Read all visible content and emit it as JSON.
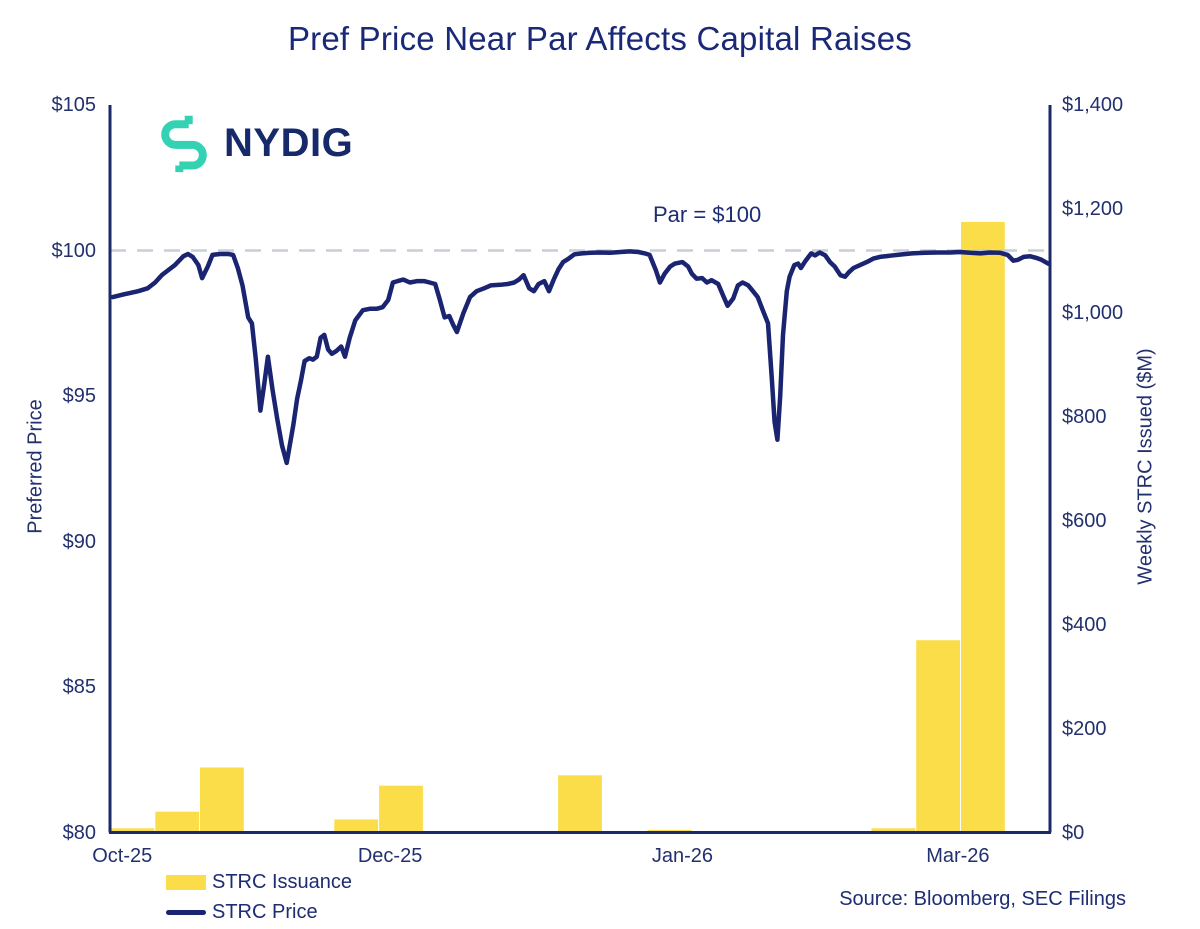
{
  "title": "Pref Price Near Par Affects Capital Raises",
  "logo": {
    "text": "NYDIG"
  },
  "annotations": {
    "par_label": "Par = $100"
  },
  "source": "Source: Bloomberg, SEC Filings",
  "legend": [
    {
      "label": "STRC Issuance",
      "type": "bar"
    },
    {
      "label": "STRC Price",
      "type": "line"
    }
  ],
  "colors": {
    "navy_line": "#1a2470",
    "navy_text": "#1e2c74",
    "axis": "#1a2a66",
    "yellow": "#fbdd4a",
    "teal": "#35d1b3",
    "dash_gray": "#c9cdd8"
  },
  "left_axis": {
    "title": "Preferred Price",
    "min": 80,
    "max": 105,
    "ticks": [
      {
        "label": "$105",
        "value": 105
      },
      {
        "label": "$100",
        "value": 100
      },
      {
        "label": "$95",
        "value": 95
      },
      {
        "label": "$90",
        "value": 90
      },
      {
        "label": "$85",
        "value": 85
      },
      {
        "label": "$80",
        "value": 80
      }
    ]
  },
  "right_axis": {
    "title": "Weekly STRC Issued ($M)",
    "min": 0,
    "max": 1400,
    "ticks": [
      {
        "label": "$1,400",
        "value": 1400
      },
      {
        "label": "$1,200",
        "value": 1200
      },
      {
        "label": "$1,000",
        "value": 1000
      },
      {
        "label": "$800",
        "value": 800
      },
      {
        "label": "$600",
        "value": 600
      },
      {
        "label": "$400",
        "value": 400
      },
      {
        "label": "$200",
        "value": 200
      },
      {
        "label": "$0",
        "value": 0
      }
    ]
  },
  "x_axis": {
    "labels": [
      {
        "text": "Oct-25",
        "f": 0.013
      },
      {
        "text": "Dec-25",
        "f": 0.298
      },
      {
        "text": "Jan-26",
        "f": 0.609
      },
      {
        "text": "Mar-26",
        "f": 0.902
      }
    ]
  },
  "chart_data": {
    "type": "line+bar",
    "title": "Pref Price Near Par Affects Capital Raises",
    "par_line_price": 100,
    "grid": false,
    "legend_position": "bottom-left",
    "bars": {
      "name": "STRC Issuance",
      "unit": "$M",
      "axis": "right",
      "weekly_slots": 21,
      "values": [
        8,
        40,
        125,
        0,
        0,
        25,
        90,
        0,
        0,
        0,
        110,
        0,
        5,
        0,
        0,
        0,
        0,
        8,
        370,
        1175,
        0
      ]
    },
    "line": {
      "name": "STRC Price",
      "unit": "$",
      "axis": "left",
      "points": [
        [
          0.003,
          98.4
        ],
        [
          0.016,
          98.5
        ],
        [
          0.03,
          98.6
        ],
        [
          0.04,
          98.7
        ],
        [
          0.048,
          98.9
        ],
        [
          0.055,
          99.15
        ],
        [
          0.061,
          99.3
        ],
        [
          0.069,
          99.5
        ],
        [
          0.078,
          99.8
        ],
        [
          0.083,
          99.88
        ],
        [
          0.088,
          99.78
        ],
        [
          0.094,
          99.5
        ],
        [
          0.098,
          99.05
        ],
        [
          0.104,
          99.45
        ],
        [
          0.109,
          99.85
        ],
        [
          0.117,
          99.88
        ],
        [
          0.126,
          99.88
        ],
        [
          0.131,
          99.85
        ],
        [
          0.136,
          99.4
        ],
        [
          0.141,
          98.8
        ],
        [
          0.147,
          97.7
        ],
        [
          0.151,
          97.5
        ],
        [
          0.155,
          96.3
        ],
        [
          0.16,
          94.5
        ],
        [
          0.164,
          95.4
        ],
        [
          0.168,
          96.35
        ],
        [
          0.173,
          95.2
        ],
        [
          0.178,
          94.2
        ],
        [
          0.183,
          93.3
        ],
        [
          0.188,
          92.7
        ],
        [
          0.195,
          94.0
        ],
        [
          0.199,
          94.9
        ],
        [
          0.203,
          95.5
        ],
        [
          0.207,
          96.2
        ],
        [
          0.212,
          96.3
        ],
        [
          0.216,
          96.25
        ],
        [
          0.22,
          96.35
        ],
        [
          0.224,
          97.0
        ],
        [
          0.228,
          97.1
        ],
        [
          0.232,
          96.6
        ],
        [
          0.236,
          96.45
        ],
        [
          0.241,
          96.55
        ],
        [
          0.246,
          96.7
        ],
        [
          0.25,
          96.35
        ],
        [
          0.255,
          97.0
        ],
        [
          0.261,
          97.6
        ],
        [
          0.269,
          97.95
        ],
        [
          0.277,
          98.0
        ],
        [
          0.284,
          98.0
        ],
        [
          0.29,
          98.05
        ],
        [
          0.296,
          98.3
        ],
        [
          0.301,
          98.9
        ],
        [
          0.306,
          98.95
        ],
        [
          0.312,
          99.0
        ],
        [
          0.319,
          98.9
        ],
        [
          0.327,
          98.95
        ],
        [
          0.334,
          98.95
        ],
        [
          0.34,
          98.9
        ],
        [
          0.346,
          98.85
        ],
        [
          0.351,
          98.3
        ],
        [
          0.356,
          97.7
        ],
        [
          0.361,
          97.75
        ],
        [
          0.365,
          97.45
        ],
        [
          0.369,
          97.2
        ],
        [
          0.376,
          97.85
        ],
        [
          0.383,
          98.4
        ],
        [
          0.39,
          98.6
        ],
        [
          0.398,
          98.7
        ],
        [
          0.405,
          98.8
        ],
        [
          0.415,
          98.82
        ],
        [
          0.423,
          98.85
        ],
        [
          0.43,
          98.9
        ],
        [
          0.435,
          99.0
        ],
        [
          0.44,
          99.15
        ],
        [
          0.446,
          98.7
        ],
        [
          0.451,
          98.6
        ],
        [
          0.456,
          98.85
        ],
        [
          0.462,
          98.95
        ],
        [
          0.467,
          98.6
        ],
        [
          0.472,
          99.0
        ],
        [
          0.477,
          99.35
        ],
        [
          0.482,
          99.6
        ],
        [
          0.487,
          99.7
        ],
        [
          0.494,
          99.87
        ],
        [
          0.502,
          99.9
        ],
        [
          0.511,
          99.92
        ],
        [
          0.521,
          99.93
        ],
        [
          0.532,
          99.92
        ],
        [
          0.543,
          99.95
        ],
        [
          0.553,
          99.97
        ],
        [
          0.562,
          99.95
        ],
        [
          0.569,
          99.9
        ],
        [
          0.574,
          99.85
        ],
        [
          0.581,
          99.3
        ],
        [
          0.585,
          98.9
        ],
        [
          0.59,
          99.2
        ],
        [
          0.596,
          99.45
        ],
        [
          0.601,
          99.55
        ],
        [
          0.609,
          99.6
        ],
        [
          0.615,
          99.45
        ],
        [
          0.619,
          99.2
        ],
        [
          0.624,
          99.03
        ],
        [
          0.63,
          99.05
        ],
        [
          0.635,
          98.9
        ],
        [
          0.64,
          98.98
        ],
        [
          0.647,
          98.85
        ],
        [
          0.653,
          98.4
        ],
        [
          0.657,
          98.1
        ],
        [
          0.663,
          98.35
        ],
        [
          0.668,
          98.8
        ],
        [
          0.673,
          98.9
        ],
        [
          0.679,
          98.8
        ],
        [
          0.684,
          98.6
        ],
        [
          0.689,
          98.4
        ],
        [
          0.695,
          97.9
        ],
        [
          0.7,
          97.5
        ],
        [
          0.704,
          95.6
        ],
        [
          0.707,
          94.1
        ],
        [
          0.71,
          93.5
        ],
        [
          0.713,
          95.0
        ],
        [
          0.716,
          97.1
        ],
        [
          0.72,
          98.6
        ],
        [
          0.723,
          99.1
        ],
        [
          0.728,
          99.5
        ],
        [
          0.732,
          99.55
        ],
        [
          0.735,
          99.4
        ],
        [
          0.74,
          99.65
        ],
        [
          0.746,
          99.9
        ],
        [
          0.75,
          99.83
        ],
        [
          0.755,
          99.93
        ],
        [
          0.761,
          99.83
        ],
        [
          0.766,
          99.6
        ],
        [
          0.771,
          99.45
        ],
        [
          0.777,
          99.15
        ],
        [
          0.782,
          99.1
        ],
        [
          0.786,
          99.25
        ],
        [
          0.791,
          99.4
        ],
        [
          0.798,
          99.5
        ],
        [
          0.805,
          99.6
        ],
        [
          0.812,
          99.72
        ],
        [
          0.819,
          99.78
        ],
        [
          0.83,
          99.82
        ],
        [
          0.84,
          99.86
        ],
        [
          0.853,
          99.9
        ],
        [
          0.867,
          99.92
        ],
        [
          0.881,
          99.93
        ],
        [
          0.894,
          99.93
        ],
        [
          0.904,
          99.95
        ],
        [
          0.915,
          99.92
        ],
        [
          0.926,
          99.9
        ],
        [
          0.936,
          99.93
        ],
        [
          0.947,
          99.92
        ],
        [
          0.955,
          99.85
        ],
        [
          0.961,
          99.65
        ],
        [
          0.966,
          99.68
        ],
        [
          0.972,
          99.78
        ],
        [
          0.979,
          99.8
        ],
        [
          0.985,
          99.75
        ],
        [
          0.991,
          99.68
        ],
        [
          0.998,
          99.55
        ]
      ]
    }
  }
}
